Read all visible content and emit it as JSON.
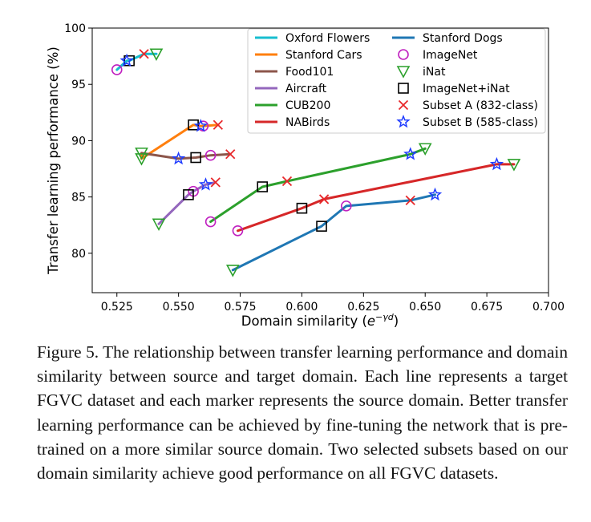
{
  "chart_data": {
    "type": "scatter",
    "xlabel": "Domain similarity (",
    "xlabel_math": "e",
    "xlabel_sup": "−γd",
    "xlabel_close": ")",
    "ylabel": "Transfer learning performance (%)",
    "xlim": [
      0.515,
      0.7
    ],
    "ylim": [
      76.5,
      100
    ],
    "xticks": [
      "0.525",
      "0.550",
      "0.575",
      "0.600",
      "0.625",
      "0.650",
      "0.675",
      "0.700"
    ],
    "xtick_values": [
      0.525,
      0.55,
      0.575,
      0.6,
      0.625,
      0.65,
      0.675,
      0.7
    ],
    "yticks": [
      "80",
      "85",
      "90",
      "95",
      "100"
    ],
    "ytick_values": [
      80,
      85,
      90,
      95,
      100
    ],
    "grid": false,
    "legend_position": "top-right",
    "line_series": [
      {
        "name": "Oxford Flowers",
        "color": "#17becf",
        "points": [
          [
            0.525,
            96.3
          ],
          [
            0.529,
            97.1
          ],
          [
            0.53,
            97.1
          ],
          [
            0.536,
            97.7
          ],
          [
            0.541,
            97.7
          ]
        ]
      },
      {
        "name": "Stanford Cars",
        "color": "#ff7f0e",
        "points": [
          [
            0.535,
            88.9
          ],
          [
            0.535,
            88.4
          ],
          [
            0.556,
            91.4
          ],
          [
            0.559,
            91.3
          ],
          [
            0.56,
            91.3
          ],
          [
            0.566,
            91.4
          ]
        ]
      },
      {
        "name": "Food101",
        "color": "#8c564b",
        "points": [
          [
            0.535,
            88.9
          ],
          [
            0.55,
            88.4
          ],
          [
            0.557,
            88.5
          ],
          [
            0.563,
            88.7
          ],
          [
            0.571,
            88.8
          ]
        ]
      },
      {
        "name": "Aircraft",
        "color": "#9467bd",
        "points": [
          [
            0.542,
            82.6
          ],
          [
            0.554,
            85.2
          ],
          [
            0.556,
            85.5
          ],
          [
            0.561,
            86.1
          ],
          [
            0.565,
            86.3
          ]
        ]
      },
      {
        "name": "CUB200",
        "color": "#2ca02c",
        "points": [
          [
            0.563,
            82.8
          ],
          [
            0.584,
            85.9
          ],
          [
            0.594,
            86.4
          ],
          [
            0.644,
            88.8
          ],
          [
            0.65,
            89.3
          ]
        ]
      },
      {
        "name": "NABirds",
        "color": "#d62728",
        "points": [
          [
            0.574,
            82.0
          ],
          [
            0.6,
            84.0
          ],
          [
            0.609,
            84.8
          ],
          [
            0.679,
            87.9
          ],
          [
            0.686,
            87.9
          ]
        ]
      },
      {
        "name": "Stanford Dogs",
        "color": "#1f77b4",
        "points": [
          [
            0.572,
            78.5
          ],
          [
            0.608,
            82.4
          ],
          [
            0.618,
            84.2
          ],
          [
            0.644,
            84.7
          ],
          [
            0.654,
            85.2
          ]
        ]
      }
    ],
    "marker_series": [
      {
        "name": "ImageNet",
        "marker": "circle",
        "color": "#c020c0",
        "points": [
          [
            0.525,
            96.3
          ],
          [
            0.56,
            91.3
          ],
          [
            0.563,
            88.7
          ],
          [
            0.556,
            85.5
          ],
          [
            0.563,
            82.8
          ],
          [
            0.574,
            82.0
          ],
          [
            0.618,
            84.2
          ]
        ]
      },
      {
        "name": "iNat",
        "marker": "triangle-down",
        "color": "#2ca02c",
        "points": [
          [
            0.541,
            97.7
          ],
          [
            0.535,
            88.4
          ],
          [
            0.535,
            88.9
          ],
          [
            0.542,
            82.6
          ],
          [
            0.65,
            89.3
          ],
          [
            0.686,
            87.9
          ],
          [
            0.572,
            78.5
          ]
        ]
      },
      {
        "name": "ImageNet+iNat",
        "marker": "square",
        "color": "#000000",
        "points": [
          [
            0.53,
            97.1
          ],
          [
            0.556,
            91.4
          ],
          [
            0.557,
            88.5
          ],
          [
            0.554,
            85.2
          ],
          [
            0.584,
            85.9
          ],
          [
            0.6,
            84.0
          ],
          [
            0.608,
            82.4
          ]
        ]
      },
      {
        "name": "Subset A (832-class)",
        "marker": "x",
        "color": "#e8282b",
        "points": [
          [
            0.536,
            97.7
          ],
          [
            0.566,
            91.4
          ],
          [
            0.571,
            88.8
          ],
          [
            0.565,
            86.3
          ],
          [
            0.594,
            86.4
          ],
          [
            0.609,
            84.8
          ],
          [
            0.644,
            84.7
          ]
        ]
      },
      {
        "name": "Subset B (585-class)",
        "marker": "star",
        "color": "#1f3cff",
        "points": [
          [
            0.529,
            97.1
          ],
          [
            0.559,
            91.3
          ],
          [
            0.55,
            88.4
          ],
          [
            0.561,
            86.1
          ],
          [
            0.644,
            88.8
          ],
          [
            0.679,
            87.9
          ],
          [
            0.654,
            85.2
          ]
        ]
      }
    ]
  },
  "caption": {
    "text": "Figure 5. The relationship between transfer learning performance and domain similarity between source and target domain. Each line represents a target FGVC dataset and each marker represents the source domain. Better transfer learning performance can be achieved by fine-tuning the network that is pre-trained on a more similar source domain. Two selected subsets based on our domain similarity achieve good performance on all FGVC datasets."
  }
}
